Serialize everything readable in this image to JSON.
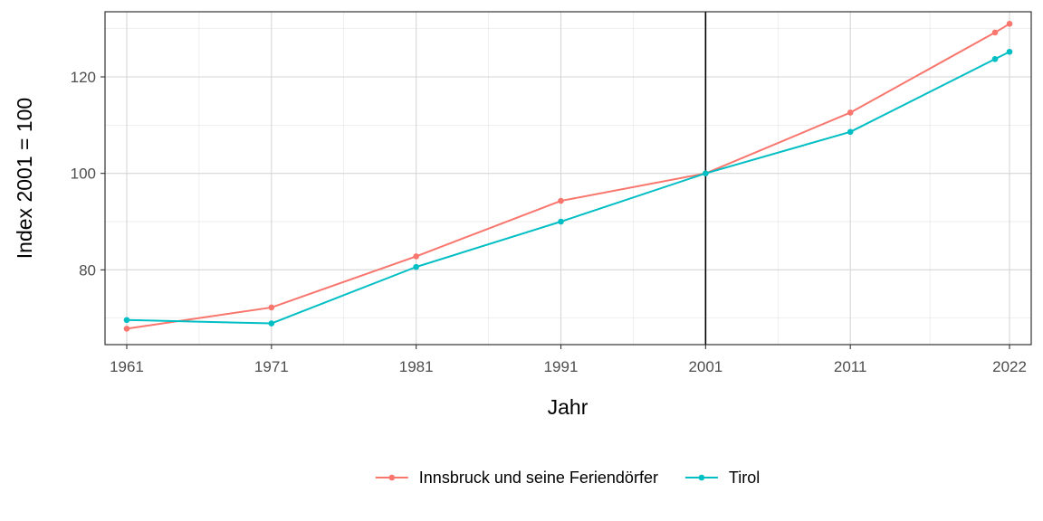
{
  "chart_data": {
    "type": "line",
    "xlabel": "Jahr",
    "ylabel": "Index 2001 = 100",
    "xlim": [
      1959.5,
      2023.5
    ],
    "ylim": [
      64.5,
      133.5
    ],
    "x_ticks": [
      1961,
      1971,
      1981,
      1991,
      2001,
      2011,
      2022
    ],
    "y_ticks": [
      80,
      100,
      120
    ],
    "grid": true,
    "legend_position": "bottom",
    "reference_line": {
      "x": 2001,
      "color": "#000000"
    },
    "series": [
      {
        "name": "Innsbruck und seine Feriendörfer",
        "color": "#F8766D",
        "x": [
          1961,
          1971,
          1981,
          1991,
          2001,
          2011,
          2021,
          2022
        ],
        "values": [
          67.8,
          72.2,
          82.8,
          94.3,
          100,
          112.6,
          129.2,
          131.0
        ]
      },
      {
        "name": "Tirol",
        "color": "#00BFC4",
        "x": [
          1961,
          1971,
          1981,
          1991,
          2001,
          2011,
          2021,
          2022
        ],
        "values": [
          69.6,
          68.9,
          80.6,
          90.0,
          100,
          108.6,
          123.7,
          125.2
        ]
      }
    ]
  }
}
